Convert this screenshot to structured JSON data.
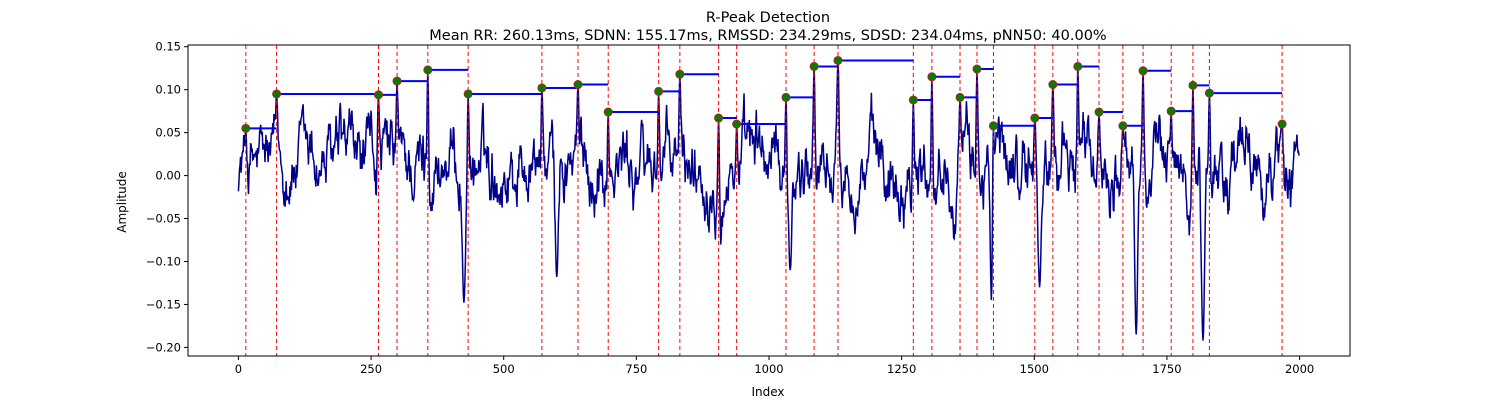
{
  "chart_data": {
    "type": "line",
    "title": "R-Peak Detection",
    "subtitle": "Mean RR: 260.13ms, SDNN: 155.17ms, RMSSD: 234.29ms, SDSD: 234.04ms, pNN50: 40.00%",
    "xlabel": "Index",
    "ylabel": "Amplitude",
    "xlim": [
      -95,
      2095
    ],
    "ylim": [
      -0.21,
      0.152
    ],
    "x_ticks": [
      0,
      250,
      500,
      750,
      1000,
      1250,
      1500,
      1750,
      2000
    ],
    "x_tick_labels": [
      "0",
      "250",
      "500",
      "750",
      "1000",
      "1250",
      "1500",
      "1750",
      "2000"
    ],
    "y_ticks": [
      -0.2,
      -0.15,
      -0.1,
      -0.05,
      0.0,
      0.05,
      0.1,
      0.15
    ],
    "y_tick_labels": [
      "−0.20",
      "−0.15",
      "−0.10",
      "−0.05",
      "0.00",
      "0.05",
      "0.10",
      "0.15"
    ],
    "grid": false,
    "legend": "none",
    "colors": {
      "signal": "#00008b",
      "peak_marker_fill": "#008000",
      "peak_marker_edge": "#b22222",
      "peak_line": "#ff0000",
      "rr_segment": "#0000ff"
    },
    "signal": {
      "x_start": 0,
      "x_end": 1999,
      "min": -0.192,
      "max": 0.134,
      "baseline_range": [
        -0.03,
        0.06
      ]
    },
    "peaks": [
      {
        "x": 14,
        "y": 0.055
      },
      {
        "x": 72,
        "y": 0.095
      },
      {
        "x": 264,
        "y": 0.094
      },
      {
        "x": 299,
        "y": 0.11
      },
      {
        "x": 357,
        "y": 0.123
      },
      {
        "x": 433,
        "y": 0.095
      },
      {
        "x": 572,
        "y": 0.102
      },
      {
        "x": 640,
        "y": 0.106
      },
      {
        "x": 697,
        "y": 0.074
      },
      {
        "x": 792,
        "y": 0.098
      },
      {
        "x": 832,
        "y": 0.118
      },
      {
        "x": 905,
        "y": 0.067
      },
      {
        "x": 939,
        "y": 0.06
      },
      {
        "x": 1032,
        "y": 0.091
      },
      {
        "x": 1085,
        "y": 0.127
      },
      {
        "x": 1130,
        "y": 0.134
      },
      {
        "x": 1272,
        "y": 0.088
      },
      {
        "x": 1307,
        "y": 0.115
      },
      {
        "x": 1360,
        "y": 0.091
      },
      {
        "x": 1392,
        "y": 0.124
      },
      {
        "x": 1423,
        "y": 0.058
      },
      {
        "x": 1501,
        "y": 0.067
      },
      {
        "x": 1535,
        "y": 0.106
      },
      {
        "x": 1582,
        "y": 0.127
      },
      {
        "x": 1622,
        "y": 0.074
      },
      {
        "x": 1667,
        "y": 0.058
      },
      {
        "x": 1705,
        "y": 0.122
      },
      {
        "x": 1758,
        "y": 0.075
      },
      {
        "x": 1799,
        "y": 0.105
      },
      {
        "x": 1830,
        "y": 0.096
      },
      {
        "x": 1967,
        "y": 0.06
      }
    ]
  }
}
